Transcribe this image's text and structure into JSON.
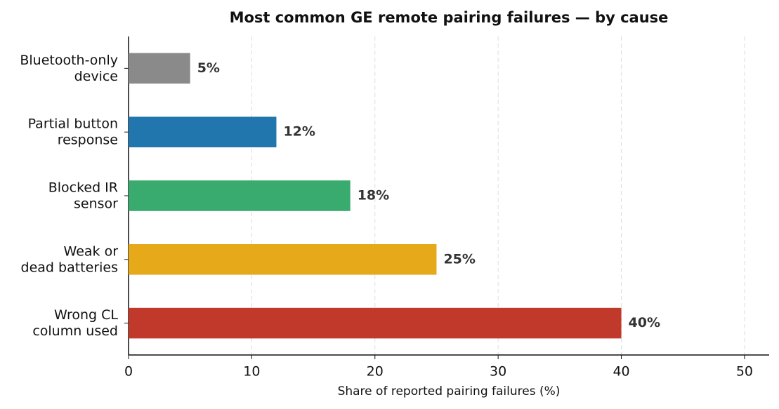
{
  "chart_data": {
    "type": "barh",
    "title": "Most common GE remote pairing failures — by cause",
    "x_label": "Share of reported pairing failures (%)",
    "categories": [
      "Bluetooth-only\ndevice",
      "Partial button\nresponse",
      "Blocked IR\nsensor",
      "Weak or\ndead batteries",
      "Wrong CL\ncolumn used"
    ],
    "values": [
      5,
      12,
      18,
      25,
      40
    ],
    "value_labels": [
      "5%",
      "12%",
      "18%",
      "25%",
      "40%"
    ],
    "colors": [
      "#8a8a8a",
      "#2176ae",
      "#3aab6e",
      "#e5a919",
      "#c0392b"
    ],
    "xlim": [
      0,
      52
    ],
    "xticks": [
      0,
      10,
      20,
      30,
      40,
      50
    ],
    "grid": true
  }
}
